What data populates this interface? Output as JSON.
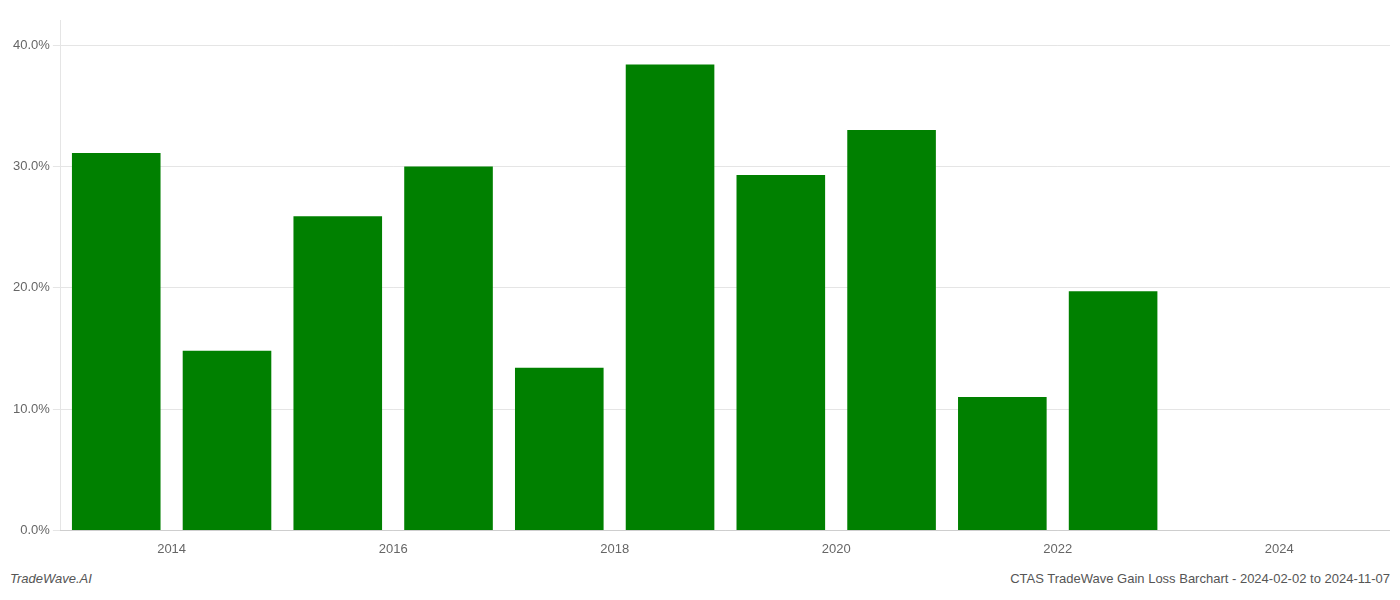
{
  "chart_data": {
    "type": "bar",
    "x": [
      2013.5,
      2014.5,
      2015.5,
      2016.5,
      2017.5,
      2018.5,
      2019.5,
      2020.5,
      2021.5,
      2022.5
    ],
    "values": [
      0.311,
      0.148,
      0.259,
      0.3,
      0.134,
      0.384,
      0.293,
      0.33,
      0.11,
      0.197
    ],
    "color": "#008000",
    "xlim": [
      2013.0,
      2025.0
    ],
    "xticks": [
      2014,
      2016,
      2018,
      2020,
      2022,
      2024
    ],
    "ylim": [
      0,
      0.42
    ],
    "yticks": [
      {
        "value": 0.0,
        "label": "0.0%"
      },
      {
        "value": 0.1,
        "label": "10.0%"
      },
      {
        "value": 0.2,
        "label": "20.0%"
      },
      {
        "value": 0.3,
        "label": "30.0%"
      },
      {
        "value": 0.4,
        "label": "40.0%"
      }
    ],
    "grid": "y",
    "annotations": [
      "TradeWave.AI",
      "CTAS TradeWave Gain Loss Barchart - 2024-02-02 to 2024-11-07"
    ]
  }
}
